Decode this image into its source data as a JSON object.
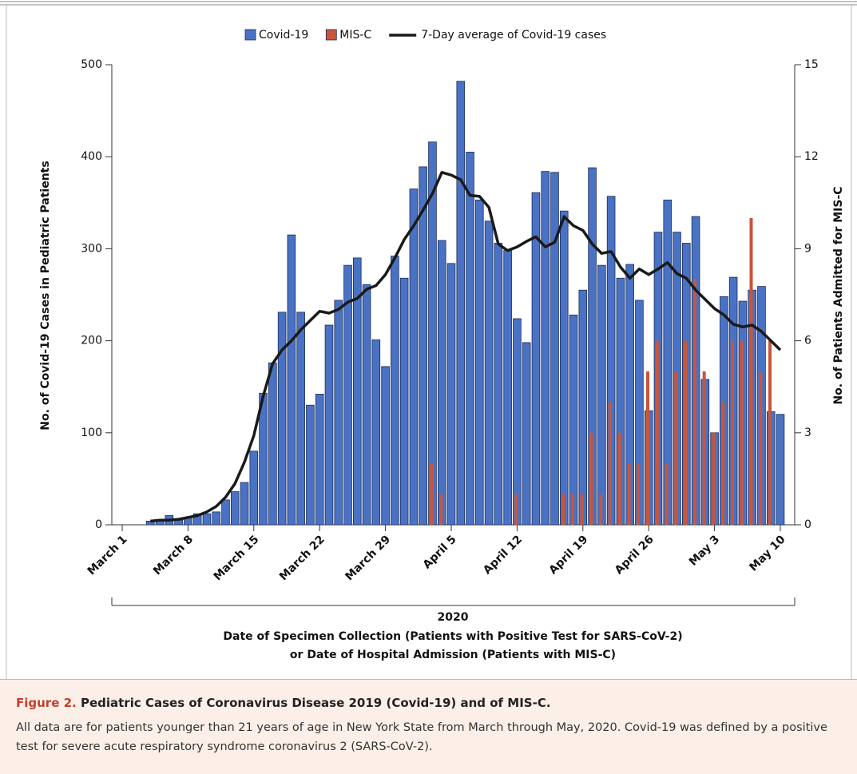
{
  "chart_data": {
    "type": "bar-line",
    "x_group_label": "2020",
    "xlabel": [
      "Date of Specimen Collection (Patients with Positive Test for SARS-CoV-2)",
      "or Date of Hospital Admission (Patients with MIS-C)"
    ],
    "ylabel": "No. of Covid-19 Cases in Pediatric Patients",
    "y2label": "No. of Patients Admitted for MIS-C",
    "x": [
      "2020-03-04",
      "2020-03-05",
      "2020-03-06",
      "2020-03-07",
      "2020-03-08",
      "2020-03-09",
      "2020-03-10",
      "2020-03-11",
      "2020-03-12",
      "2020-03-13",
      "2020-03-14",
      "2020-03-15",
      "2020-03-16",
      "2020-03-17",
      "2020-03-18",
      "2020-03-19",
      "2020-03-20",
      "2020-03-21",
      "2020-03-22",
      "2020-03-23",
      "2020-03-24",
      "2020-03-25",
      "2020-03-26",
      "2020-03-27",
      "2020-03-28",
      "2020-03-29",
      "2020-03-30",
      "2020-03-31",
      "2020-04-01",
      "2020-04-02",
      "2020-04-03",
      "2020-04-04",
      "2020-04-05",
      "2020-04-06",
      "2020-04-07",
      "2020-04-08",
      "2020-04-09",
      "2020-04-10",
      "2020-04-11",
      "2020-04-12",
      "2020-04-13",
      "2020-04-14",
      "2020-04-15",
      "2020-04-16",
      "2020-04-17",
      "2020-04-18",
      "2020-04-19",
      "2020-04-20",
      "2020-04-21",
      "2020-04-22",
      "2020-04-23",
      "2020-04-24",
      "2020-04-25",
      "2020-04-26",
      "2020-04-27",
      "2020-04-28",
      "2020-04-29",
      "2020-04-30",
      "2020-05-01",
      "2020-05-02",
      "2020-05-03",
      "2020-05-04",
      "2020-05-05",
      "2020-05-06",
      "2020-05-07",
      "2020-05-08",
      "2020-05-09",
      "2020-05-10"
    ],
    "series": [
      {
        "name": "Covid-19",
        "kind": "bar",
        "color": "#4a72c4",
        "values": [
          4,
          5,
          10,
          5,
          8,
          12,
          12,
          14,
          27,
          36,
          46,
          80,
          143,
          176,
          231,
          315,
          231,
          130,
          142,
          217,
          244,
          282,
          290,
          261,
          201,
          172,
          292,
          268,
          365,
          389,
          416,
          309,
          284,
          482,
          405,
          353,
          330,
          306,
          298,
          224,
          198,
          361,
          384,
          383,
          341,
          228,
          255,
          388,
          282,
          357,
          268,
          283,
          244,
          124,
          318,
          353,
          318,
          306,
          335,
          158,
          100,
          248,
          269,
          243,
          255,
          259,
          123,
          120
        ]
      },
      {
        "name": "MIS-C",
        "kind": "bar",
        "axis": "y2",
        "color": "#c9553a",
        "values": [
          0,
          0,
          0,
          0,
          0,
          0,
          0,
          0,
          0,
          0,
          0,
          0,
          0,
          0,
          0,
          0,
          0,
          0,
          0,
          0,
          0,
          0,
          0,
          0,
          0,
          0,
          0,
          0,
          0,
          0,
          2,
          1,
          0,
          0,
          0,
          0,
          0,
          0,
          0,
          1,
          0,
          0,
          0,
          0,
          1,
          1,
          1,
          3,
          1,
          4,
          3,
          2,
          2,
          5,
          6,
          2,
          5,
          6,
          8,
          5,
          3,
          4,
          6,
          6,
          10,
          5,
          6,
          0
        ]
      },
      {
        "name": "7-Day average of Covid-19 cases",
        "kind": "line",
        "color": "#1a1a1a",
        "values": [
          4,
          5,
          5,
          6,
          8,
          10,
          14,
          20,
          30,
          45,
          68,
          97,
          140,
          175,
          190,
          200,
          212,
          222,
          232,
          230,
          234,
          242,
          246,
          256,
          260,
          272,
          290,
          310,
          325,
          342,
          360,
          383,
          380,
          375,
          358,
          357,
          345,
          305,
          298,
          302,
          308,
          313,
          302,
          307,
          335,
          325,
          320,
          305,
          295,
          297,
          280,
          268,
          278,
          272,
          278,
          285,
          273,
          268,
          255,
          245,
          235,
          228,
          218,
          215,
          217,
          210,
          200,
          190
        ]
      }
    ],
    "xlim": [
      "2020-03-01",
      "2020-05-10"
    ],
    "xticks": [
      {
        "value": "2020-03-01",
        "label": "March 1"
      },
      {
        "value": "2020-03-08",
        "label": "March 8"
      },
      {
        "value": "2020-03-15",
        "label": "March 15"
      },
      {
        "value": "2020-03-22",
        "label": "March 22"
      },
      {
        "value": "2020-03-29",
        "label": "March 29"
      },
      {
        "value": "2020-04-05",
        "label": "April 5"
      },
      {
        "value": "2020-04-12",
        "label": "April 12"
      },
      {
        "value": "2020-04-19",
        "label": "April 19"
      },
      {
        "value": "2020-04-26",
        "label": "April 26"
      },
      {
        "value": "2020-05-03",
        "label": "May 3"
      },
      {
        "value": "2020-05-10",
        "label": "May 10"
      }
    ],
    "ylim": [
      0,
      500
    ],
    "yticks": [
      0,
      100,
      200,
      300,
      400,
      500
    ],
    "y2lim": [
      0,
      15
    ],
    "y2ticks": [
      0,
      3,
      6,
      9,
      12,
      15
    ]
  },
  "caption": {
    "label": "Figure 2.",
    "title": "Pediatric Cases of Coronavirus Disease 2019 (Covid-19) and of MIS-C.",
    "text": "All data are for patients younger than 21 years of age in New York State from March through May, 2020. Covid-19 was defined by a positive test for severe acute respiratory syndrome coronavirus 2 (SARS-CoV-2)."
  }
}
